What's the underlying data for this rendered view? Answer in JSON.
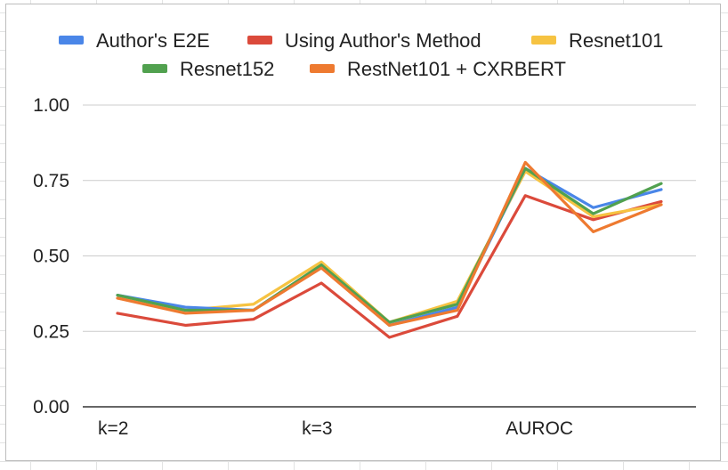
{
  "chart_data": {
    "type": "line",
    "title": "",
    "xlabel": "",
    "ylabel": "",
    "ylim": [
      0,
      1
    ],
    "yticks": [
      "0.00",
      "0.25",
      "0.50",
      "0.75",
      "1.00"
    ],
    "ytick_values": [
      0,
      0.25,
      0.5,
      0.75,
      1.0
    ],
    "x": [
      1,
      2,
      3,
      4,
      5,
      6,
      7,
      8,
      9
    ],
    "x_tick_labels": [
      {
        "x": 1,
        "label": "k=2"
      },
      {
        "x": 4,
        "label": "k=3"
      },
      {
        "x": 7,
        "label": "AUROC"
      }
    ],
    "grid": true,
    "legend_position": "top",
    "series": [
      {
        "name": "Author's E2E",
        "color": "#4a86e8",
        "values": [
          0.37,
          0.33,
          0.32,
          0.47,
          0.27,
          0.33,
          0.79,
          0.66,
          0.72
        ]
      },
      {
        "name": "Using Author's Method",
        "color": "#db4a3b",
        "values": [
          0.31,
          0.27,
          0.29,
          0.41,
          0.23,
          0.3,
          0.7,
          0.62,
          0.68
        ]
      },
      {
        "name": "Resnet101",
        "color": "#f6c342",
        "values": [
          0.36,
          0.32,
          0.34,
          0.48,
          0.28,
          0.35,
          0.78,
          0.63,
          0.67
        ]
      },
      {
        "name": "Resnet152",
        "color": "#51a14f",
        "values": [
          0.37,
          0.32,
          0.32,
          0.47,
          0.28,
          0.34,
          0.79,
          0.64,
          0.74
        ]
      },
      {
        "name": "RestNet101 + CXRBERT",
        "color": "#ee7a30",
        "values": [
          0.36,
          0.31,
          0.32,
          0.46,
          0.27,
          0.32,
          0.81,
          0.58,
          0.67
        ]
      }
    ]
  }
}
